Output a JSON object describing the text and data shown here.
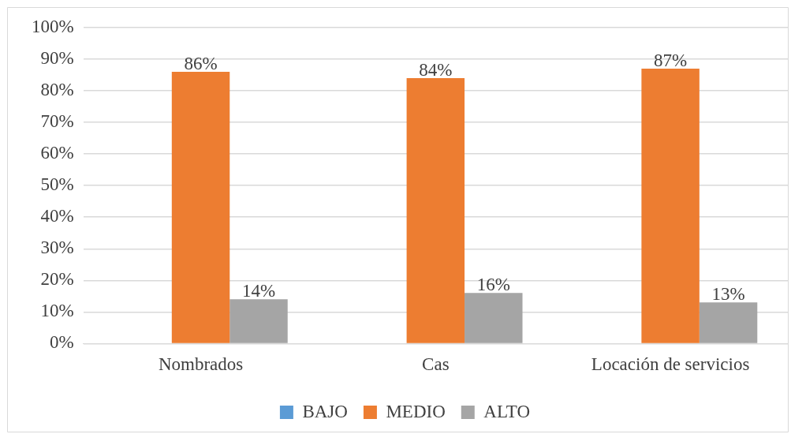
{
  "chart_data": {
    "type": "bar",
    "categories": [
      "Nombrados",
      "Cas",
      "Locación de servicios"
    ],
    "series": [
      {
        "name": "BAJO",
        "color": "#5b9bd5",
        "values": [
          0,
          0,
          0
        ]
      },
      {
        "name": "MEDIO",
        "color": "#ed7d31",
        "values": [
          86,
          84,
          87
        ],
        "value_labels": [
          "86%",
          "84%",
          "87%"
        ]
      },
      {
        "name": "ALTO",
        "color": "#a5a5a5",
        "values": [
          14,
          16,
          13
        ],
        "value_labels": [
          "14%",
          "16%",
          "13%"
        ]
      }
    ],
    "ylim": [
      0,
      100
    ],
    "yticks": [
      {
        "value": 0,
        "label": "0%"
      },
      {
        "value": 10,
        "label": "10%"
      },
      {
        "value": 20,
        "label": "20%"
      },
      {
        "value": 30,
        "label": "30%"
      },
      {
        "value": 40,
        "label": "40%"
      },
      {
        "value": 50,
        "label": "50%"
      },
      {
        "value": 60,
        "label": "60%"
      },
      {
        "value": 70,
        "label": "70%"
      },
      {
        "value": 80,
        "label": "80%"
      },
      {
        "value": 90,
        "label": "90%"
      },
      {
        "value": 100,
        "label": "100%"
      }
    ],
    "grid": "y",
    "legend": "bottom"
  }
}
